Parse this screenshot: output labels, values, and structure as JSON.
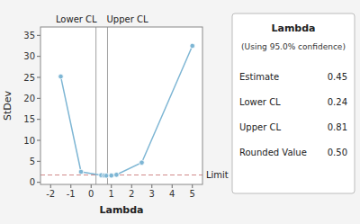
{
  "chart_data": {
    "type": "line",
    "x_label": "Lambda",
    "y_label": "StDev",
    "x": [
      -1.5,
      -0.5,
      0.5,
      0.65,
      0.75,
      1.0,
      1.25,
      2.5,
      5.0
    ],
    "values": [
      25.2,
      2.5,
      1.7,
      1.62,
      1.58,
      1.62,
      1.8,
      4.7,
      32.5
    ],
    "color": "#7eb6d4",
    "marker": "circle",
    "xlim": [
      -2.5,
      5.5
    ],
    "ylim": [
      -0.5,
      37
    ],
    "xticks": [
      -2,
      -1,
      0,
      1,
      2,
      3,
      4,
      5
    ],
    "yticks": [
      0,
      5,
      10,
      15,
      20,
      25,
      30,
      35
    ],
    "grid": false,
    "reference_lines": [
      {
        "axis": "y",
        "value": 1.75,
        "label": "Limit",
        "line_style": "dashed"
      },
      {
        "axis": "x",
        "value": 0.24,
        "label": "Lower CL",
        "line_style": "solid"
      },
      {
        "axis": "x",
        "value": 0.81,
        "label": "Upper CL",
        "line_style": "solid"
      }
    ],
    "info_box": {
      "title": "Lambda",
      "subtitle": "(Using 95.0% confidence)",
      "rows": [
        {
          "label": "Estimate",
          "value": "0.45"
        },
        {
          "label": "Lower CL",
          "value": "0.24"
        },
        {
          "label": "Upper CL",
          "value": "0.81"
        },
        {
          "label": "Rounded Value",
          "value": "0.50"
        }
      ]
    }
  }
}
